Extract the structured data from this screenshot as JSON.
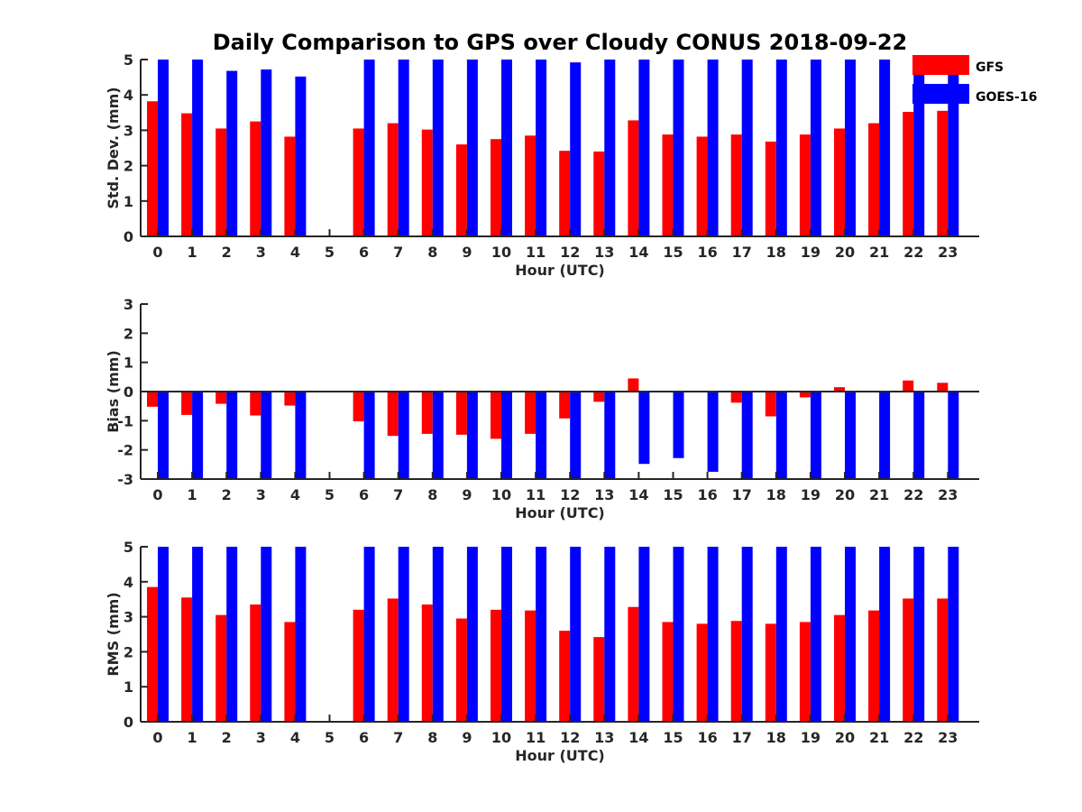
{
  "chart_data": {
    "title": "Daily Comparison to GPS over Cloudy CONUS 2018-09-22",
    "legend": {
      "placement": "top-right",
      "entries": [
        "GFS",
        "GOES-16"
      ]
    },
    "colors": {
      "GFS": "#ff0000",
      "GOES-16": "#0000ff"
    },
    "grid": false,
    "panels": [
      {
        "type": "bar",
        "ylabel": "Std. Dev. (mm)",
        "xlabel": "Hour (UTC)",
        "ylim": [
          0,
          5
        ],
        "yticks": [
          0,
          1,
          2,
          3,
          4,
          5
        ],
        "categories": [
          "0",
          "1",
          "2",
          "3",
          "4",
          "5",
          "6",
          "7",
          "8",
          "9",
          "10",
          "11",
          "12",
          "13",
          "14",
          "15",
          "16",
          "17",
          "18",
          "19",
          "20",
          "21",
          "22",
          "23"
        ],
        "series": [
          {
            "name": "GFS",
            "values": [
              3.82,
              3.48,
              3.05,
              3.25,
              2.82,
              null,
              3.05,
              3.2,
              3.02,
              2.6,
              2.75,
              2.85,
              2.42,
              2.4,
              3.28,
              2.88,
              2.82,
              2.88,
              2.68,
              2.88,
              3.05,
              3.2,
              3.52,
              3.55
            ]
          },
          {
            "name": "GOES-16",
            "values": [
              5,
              5,
              4.68,
              4.72,
              4.52,
              null,
              5,
              5,
              5,
              5,
              5,
              5,
              4.92,
              5,
              5,
              5,
              5,
              5,
              5,
              5,
              5,
              5,
              4.75,
              4.6
            ]
          }
        ]
      },
      {
        "type": "bar",
        "ylabel": "Bias (mm)",
        "xlabel": "Hour (UTC)",
        "ylim": [
          -3,
          3
        ],
        "yticks": [
          -3,
          -2,
          -1,
          0,
          1,
          2,
          3
        ],
        "zero_line": true,
        "categories": [
          "0",
          "1",
          "2",
          "3",
          "4",
          "5",
          "6",
          "7",
          "8",
          "9",
          "10",
          "11",
          "12",
          "13",
          "14",
          "15",
          "16",
          "17",
          "18",
          "19",
          "20",
          "21",
          "22",
          "23"
        ],
        "series": [
          {
            "name": "GFS",
            "values": [
              -0.52,
              -0.8,
              -0.42,
              -0.82,
              -0.48,
              null,
              -1.02,
              -1.52,
              -1.45,
              -1.48,
              -1.62,
              -1.45,
              -0.92,
              -0.35,
              0.45,
              0.0,
              0.02,
              -0.38,
              -0.85,
              -0.2,
              0.15,
              -0.02,
              0.38,
              0.3
            ]
          },
          {
            "name": "GOES-16",
            "values": [
              -3,
              -3,
              -3,
              -3,
              -3,
              null,
              -3,
              -3,
              -3,
              -3,
              -3,
              -3,
              -3,
              -3,
              -2.48,
              -2.28,
              -2.75,
              -3,
              -3,
              -3,
              -3,
              -3,
              -3,
              -3
            ]
          }
        ]
      },
      {
        "type": "bar",
        "ylabel": "RMS (mm)",
        "xlabel": "Hour (UTC)",
        "ylim": [
          0,
          5
        ],
        "yticks": [
          0,
          1,
          2,
          3,
          4,
          5
        ],
        "categories": [
          "0",
          "1",
          "2",
          "3",
          "4",
          "5",
          "6",
          "7",
          "8",
          "9",
          "10",
          "11",
          "12",
          "13",
          "14",
          "15",
          "16",
          "17",
          "18",
          "19",
          "20",
          "21",
          "22",
          "23"
        ],
        "series": [
          {
            "name": "GFS",
            "values": [
              3.85,
              3.55,
              3.05,
              3.35,
              2.85,
              null,
              3.2,
              3.52,
              3.35,
              2.95,
              3.2,
              3.18,
              2.6,
              2.42,
              3.28,
              2.85,
              2.8,
              2.88,
              2.8,
              2.85,
              3.05,
              3.18,
              3.52,
              3.52
            ]
          },
          {
            "name": "GOES-16",
            "values": [
              5,
              5,
              5,
              5,
              5,
              null,
              5,
              5,
              5,
              5,
              5,
              5,
              5,
              5,
              5,
              5,
              5,
              5,
              5,
              5,
              5,
              5,
              5,
              5
            ]
          }
        ]
      }
    ]
  }
}
